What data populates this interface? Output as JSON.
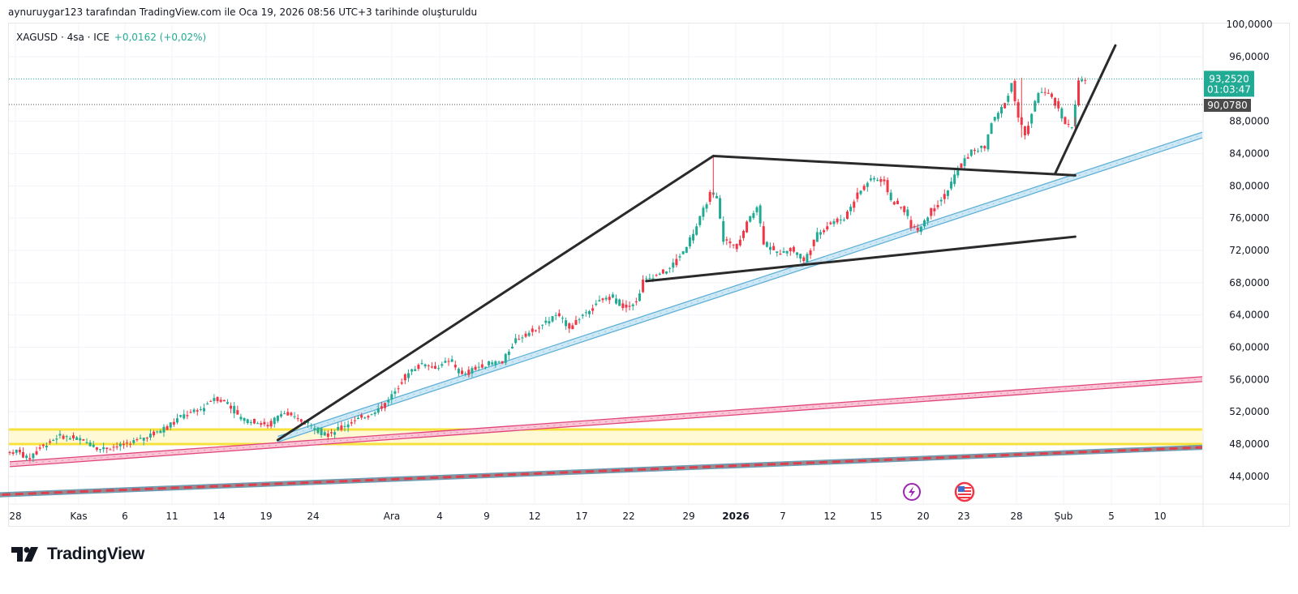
{
  "attribution": "aynuruygar123 tarafından TradingView.com ile Oca 19, 2026 08:56 UTC+3 tarihinde oluşturuldu",
  "legend": {
    "symbol": "XAGUSD · 4sa · ICE",
    "change": "+0,0162 (+0,02%)"
  },
  "brand": {
    "name": "TradingView"
  },
  "colors": {
    "up": "#22ab94",
    "down": "#f23645",
    "price_label": "#22ab94",
    "prev_label": "#4a4a4a",
    "grid": "#f0f3fa",
    "trend_black": "#2a2a2a",
    "channel_blue": "#5fb0d6",
    "channel_pink": "#e0447a",
    "zone_yellow": "#f7e13c",
    "event_purple": "#9c27b0",
    "event_red": "#f23645"
  },
  "chart_data": {
    "type": "candlestick",
    "title": "XAGUSD · 4sa · ICE",
    "ylim": [
      41,
      100
    ],
    "y_ticks": [
      "100,0000",
      "96,0000",
      "88,0000",
      "84,0000",
      "80,0000",
      "76,0000",
      "72,0000",
      "68,0000",
      "64,0000",
      "60,0000",
      "56,0000",
      "52,0000",
      "48,0000",
      "44,0000"
    ],
    "y_tick_values": [
      100,
      96,
      88,
      84,
      80,
      76,
      72,
      68,
      64,
      60,
      56,
      52,
      48,
      44
    ],
    "x_ticks": [
      {
        "label": "28",
        "bold": false
      },
      {
        "label": "Kas",
        "bold": false
      },
      {
        "label": "6",
        "bold": false
      },
      {
        "label": "11",
        "bold": false
      },
      {
        "label": "14",
        "bold": false
      },
      {
        "label": "19",
        "bold": false
      },
      {
        "label": "24",
        "bold": false
      },
      {
        "label": "Ara",
        "bold": false
      },
      {
        "label": "4",
        "bold": false
      },
      {
        "label": "9",
        "bold": false
      },
      {
        "label": "12",
        "bold": false
      },
      {
        "label": "17",
        "bold": false
      },
      {
        "label": "22",
        "bold": false
      },
      {
        "label": "29",
        "bold": false
      },
      {
        "label": "2026",
        "bold": true
      },
      {
        "label": "7",
        "bold": false
      },
      {
        "label": "12",
        "bold": false
      },
      {
        "label": "15",
        "bold": false
      },
      {
        "label": "20",
        "bold": false
      },
      {
        "label": "23",
        "bold": false
      },
      {
        "label": "28",
        "bold": false
      },
      {
        "label": "Şub",
        "bold": false
      },
      {
        "label": "5",
        "bold": false
      },
      {
        "label": "10",
        "bold": false
      }
    ],
    "price_path": [
      [
        0,
        46.9
      ],
      [
        4,
        47.2
      ],
      [
        6,
        46.0
      ],
      [
        10,
        47.6
      ],
      [
        16,
        49.0
      ],
      [
        22,
        48.6
      ],
      [
        28,
        47.4
      ],
      [
        34,
        47.8
      ],
      [
        40,
        48.6
      ],
      [
        46,
        49.7
      ],
      [
        52,
        51.4
      ],
      [
        58,
        52.3
      ],
      [
        62,
        53.8
      ],
      [
        66,
        53.0
      ],
      [
        70,
        51.0
      ],
      [
        74,
        50.8
      ],
      [
        78,
        50.2
      ],
      [
        82,
        52.0
      ],
      [
        86,
        51.2
      ],
      [
        90,
        50.5
      ],
      [
        94,
        49.4
      ],
      [
        96,
        49.2
      ],
      [
        100,
        50.2
      ],
      [
        104,
        50.9
      ],
      [
        108,
        51.7
      ],
      [
        112,
        52.6
      ],
      [
        116,
        54.6
      ],
      [
        120,
        57.0
      ],
      [
        124,
        58.0
      ],
      [
        128,
        57.4
      ],
      [
        132,
        58.4
      ],
      [
        136,
        56.5
      ],
      [
        140,
        57.5
      ],
      [
        144,
        58.0
      ],
      [
        148,
        58.2
      ],
      [
        152,
        61.0
      ],
      [
        156,
        61.8
      ],
      [
        160,
        62.8
      ],
      [
        164,
        64.0
      ],
      [
        168,
        62.5
      ],
      [
        172,
        64.0
      ],
      [
        176,
        65.5
      ],
      [
        180,
        66.3
      ],
      [
        184,
        65.0
      ],
      [
        188,
        65.6
      ],
      [
        190,
        68.2
      ],
      [
        194,
        68.9
      ],
      [
        198,
        69.8
      ],
      [
        202,
        71.9
      ],
      [
        206,
        75.0
      ],
      [
        210,
        79.0
      ],
      [
        212,
        78.3
      ],
      [
        214,
        73.3
      ],
      [
        218,
        72.4
      ],
      [
        222,
        76.3
      ],
      [
        224,
        77.5
      ],
      [
        226,
        73.0
      ],
      [
        230,
        71.5
      ],
      [
        234,
        72.3
      ],
      [
        238,
        70.6
      ],
      [
        242,
        74.0
      ],
      [
        246,
        75.5
      ],
      [
        250,
        76.0
      ],
      [
        254,
        79.0
      ],
      [
        258,
        80.9
      ],
      [
        262,
        80.5
      ],
      [
        264,
        78.2
      ],
      [
        268,
        77.0
      ],
      [
        270,
        75.0
      ],
      [
        272,
        74.5
      ],
      [
        276,
        77.0
      ],
      [
        280,
        78.8
      ],
      [
        284,
        82.1
      ],
      [
        288,
        84.3
      ],
      [
        292,
        84.8
      ],
      [
        294,
        87.9
      ],
      [
        298,
        90.2
      ],
      [
        300,
        92.7
      ],
      [
        302,
        88.6
      ],
      [
        304,
        86.2
      ],
      [
        308,
        91.7
      ],
      [
        312,
        91.0
      ],
      [
        316,
        87.8
      ],
      [
        318,
        87.2
      ],
      [
        320,
        92.8
      ],
      [
        322,
        93.25
      ]
    ],
    "last_price": "93,2520",
    "countdown": "01:03:47",
    "prev_close": "90,0780",
    "drawings": {
      "yellow_zone": [
        48.0,
        49.8
      ],
      "pink_channel": [
        [
          0,
          45.5
        ],
        [
          405,
          57.5
        ]
      ],
      "blue_channel": [
        [
          80,
          48.6
        ],
        [
          405,
          93.0
        ]
      ],
      "bottom_channel": [
        [
          -10,
          41.6
        ],
        [
          405,
          48.4
        ]
      ],
      "black_lines": [
        [
          [
            80,
            48.5
          ],
          [
            210,
            83.7
          ]
        ],
        [
          [
            210,
            83.7
          ],
          [
            318,
            81.3
          ]
        ],
        [
          [
            190,
            68.2
          ],
          [
            318,
            73.7
          ]
        ],
        [
          [
            312,
            81.5
          ],
          [
            330,
            97.4
          ]
        ]
      ]
    },
    "events": [
      {
        "name": "event-lightning-icon",
        "glyph": "⚡"
      },
      {
        "name": "us-flag-event-icon",
        "glyph": "🇺🇸"
      }
    ]
  }
}
